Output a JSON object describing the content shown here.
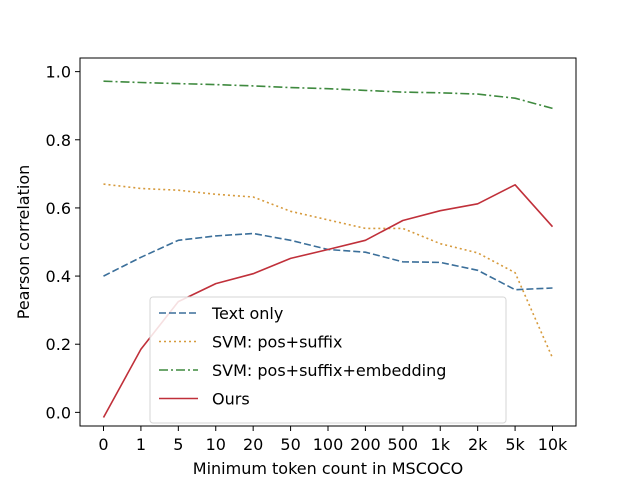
{
  "chart_data": {
    "type": "line",
    "title": "",
    "xlabel": "Minimum token count in MSCOCO",
    "ylabel": "Pearson correlation",
    "categories": [
      "0",
      "1",
      "5",
      "10",
      "20",
      "50",
      "100",
      "200",
      "500",
      "1k",
      "2k",
      "5k",
      "10k"
    ],
    "yticks": [
      "0.0",
      "0.2",
      "0.4",
      "0.6",
      "0.8",
      "1.0"
    ],
    "ytick_values": [
      0.0,
      0.2,
      0.4,
      0.6,
      0.8,
      1.0
    ],
    "ylim": [
      -0.04,
      1.04
    ],
    "grid": false,
    "legend_position": "lower-center",
    "series": [
      {
        "name": "Text only",
        "color": "#3b6f9a",
        "dash": "dashed",
        "values": [
          0.4,
          0.455,
          0.505,
          0.518,
          0.525,
          0.505,
          0.478,
          0.47,
          0.442,
          0.44,
          0.417,
          0.36,
          0.365
        ]
      },
      {
        "name": "SVM: pos+suffix",
        "color": "#d69a3c",
        "dash": "dotted",
        "values": [
          0.67,
          0.657,
          0.652,
          0.64,
          0.632,
          0.59,
          0.565,
          0.54,
          0.54,
          0.495,
          0.468,
          0.41,
          0.16
        ]
      },
      {
        "name": "SVM: pos+suffix+embedding",
        "color": "#3f8a3f",
        "dash": "dashdot",
        "values": [
          0.972,
          0.968,
          0.965,
          0.962,
          0.958,
          0.953,
          0.95,
          0.945,
          0.94,
          0.938,
          0.934,
          0.922,
          0.892
        ]
      },
      {
        "name": "Ours",
        "color": "#c0303a",
        "dash": "solid",
        "values": [
          -0.015,
          0.185,
          0.325,
          0.378,
          0.407,
          0.452,
          0.478,
          0.505,
          0.563,
          0.592,
          0.612,
          0.668,
          0.545
        ]
      }
    ]
  }
}
